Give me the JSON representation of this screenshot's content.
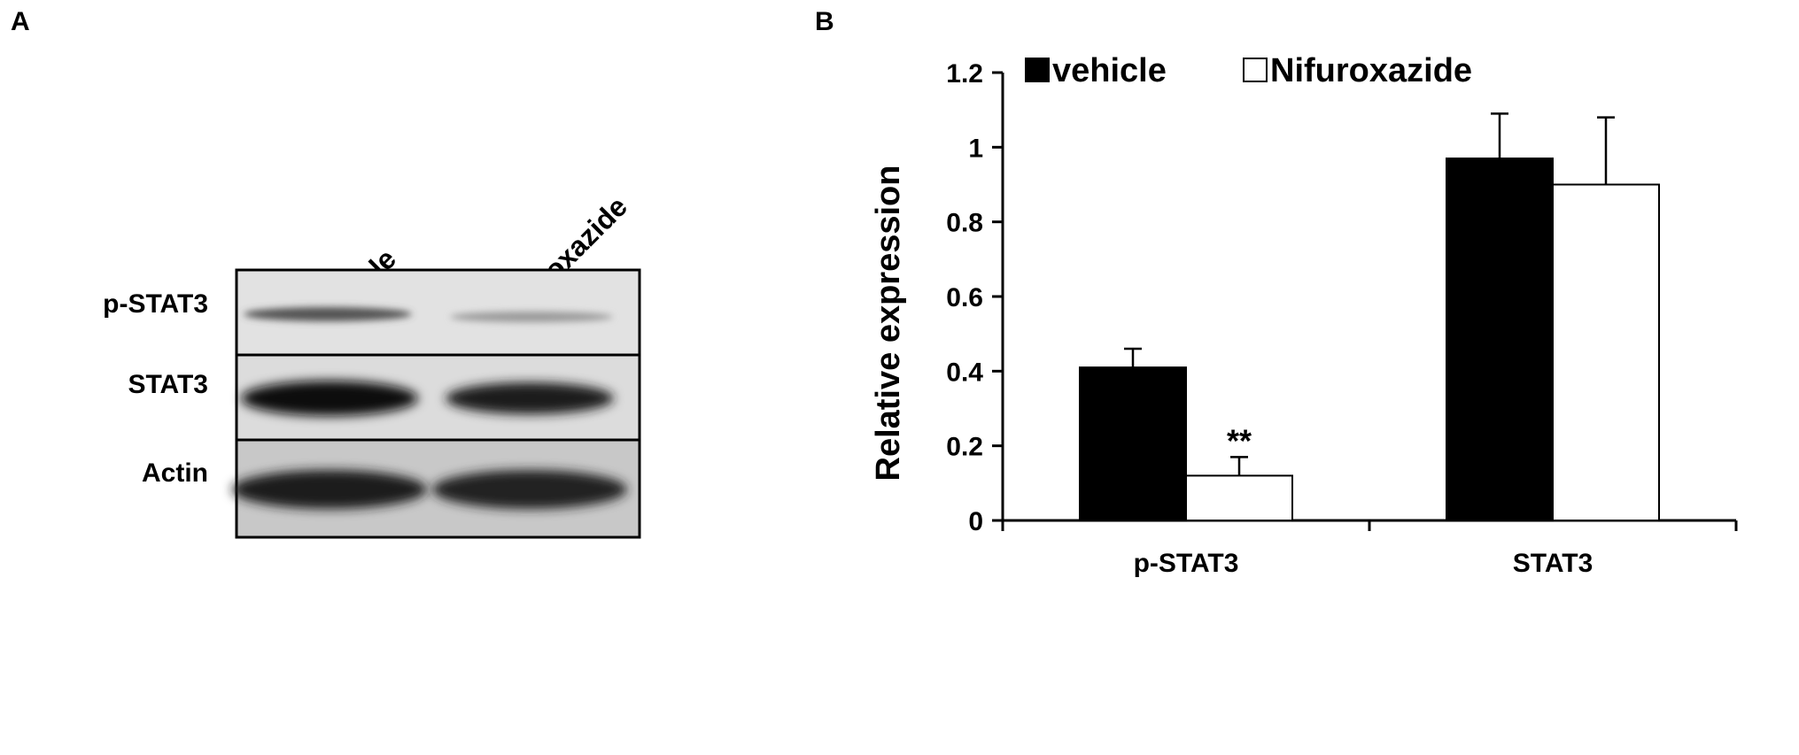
{
  "panel_a": {
    "label": "A",
    "lanes": [
      "vehicle",
      "Nifuroxazide"
    ],
    "rows": [
      "p-STAT3",
      "STAT3",
      "Actin"
    ]
  },
  "panel_b": {
    "label": "B"
  },
  "chart_data": {
    "type": "bar",
    "categories": [
      "p-STAT3",
      "STAT3"
    ],
    "series": [
      {
        "name": "vehicle",
        "values": [
          0.41,
          0.97
        ],
        "errors": [
          0.05,
          0.12
        ],
        "color": "#000000"
      },
      {
        "name": "Nifuroxazide",
        "values": [
          0.12,
          0.9
        ],
        "errors": [
          0.05,
          0.18
        ],
        "color": "#ffffff"
      }
    ],
    "ylabel": "Relative expression",
    "ylim": [
      0,
      1.2
    ],
    "yticks": [
      0,
      0.2,
      0.4,
      0.6,
      0.8,
      1,
      1.2
    ],
    "ytick_labels": [
      "0",
      "0.2",
      "0.4",
      "0.6",
      "0.8",
      "1",
      "1.2"
    ],
    "annotations": [
      {
        "category": "p-STAT3",
        "series": "Nifuroxazide",
        "text": "**"
      }
    ],
    "legend_position": "top",
    "grid": false
  }
}
